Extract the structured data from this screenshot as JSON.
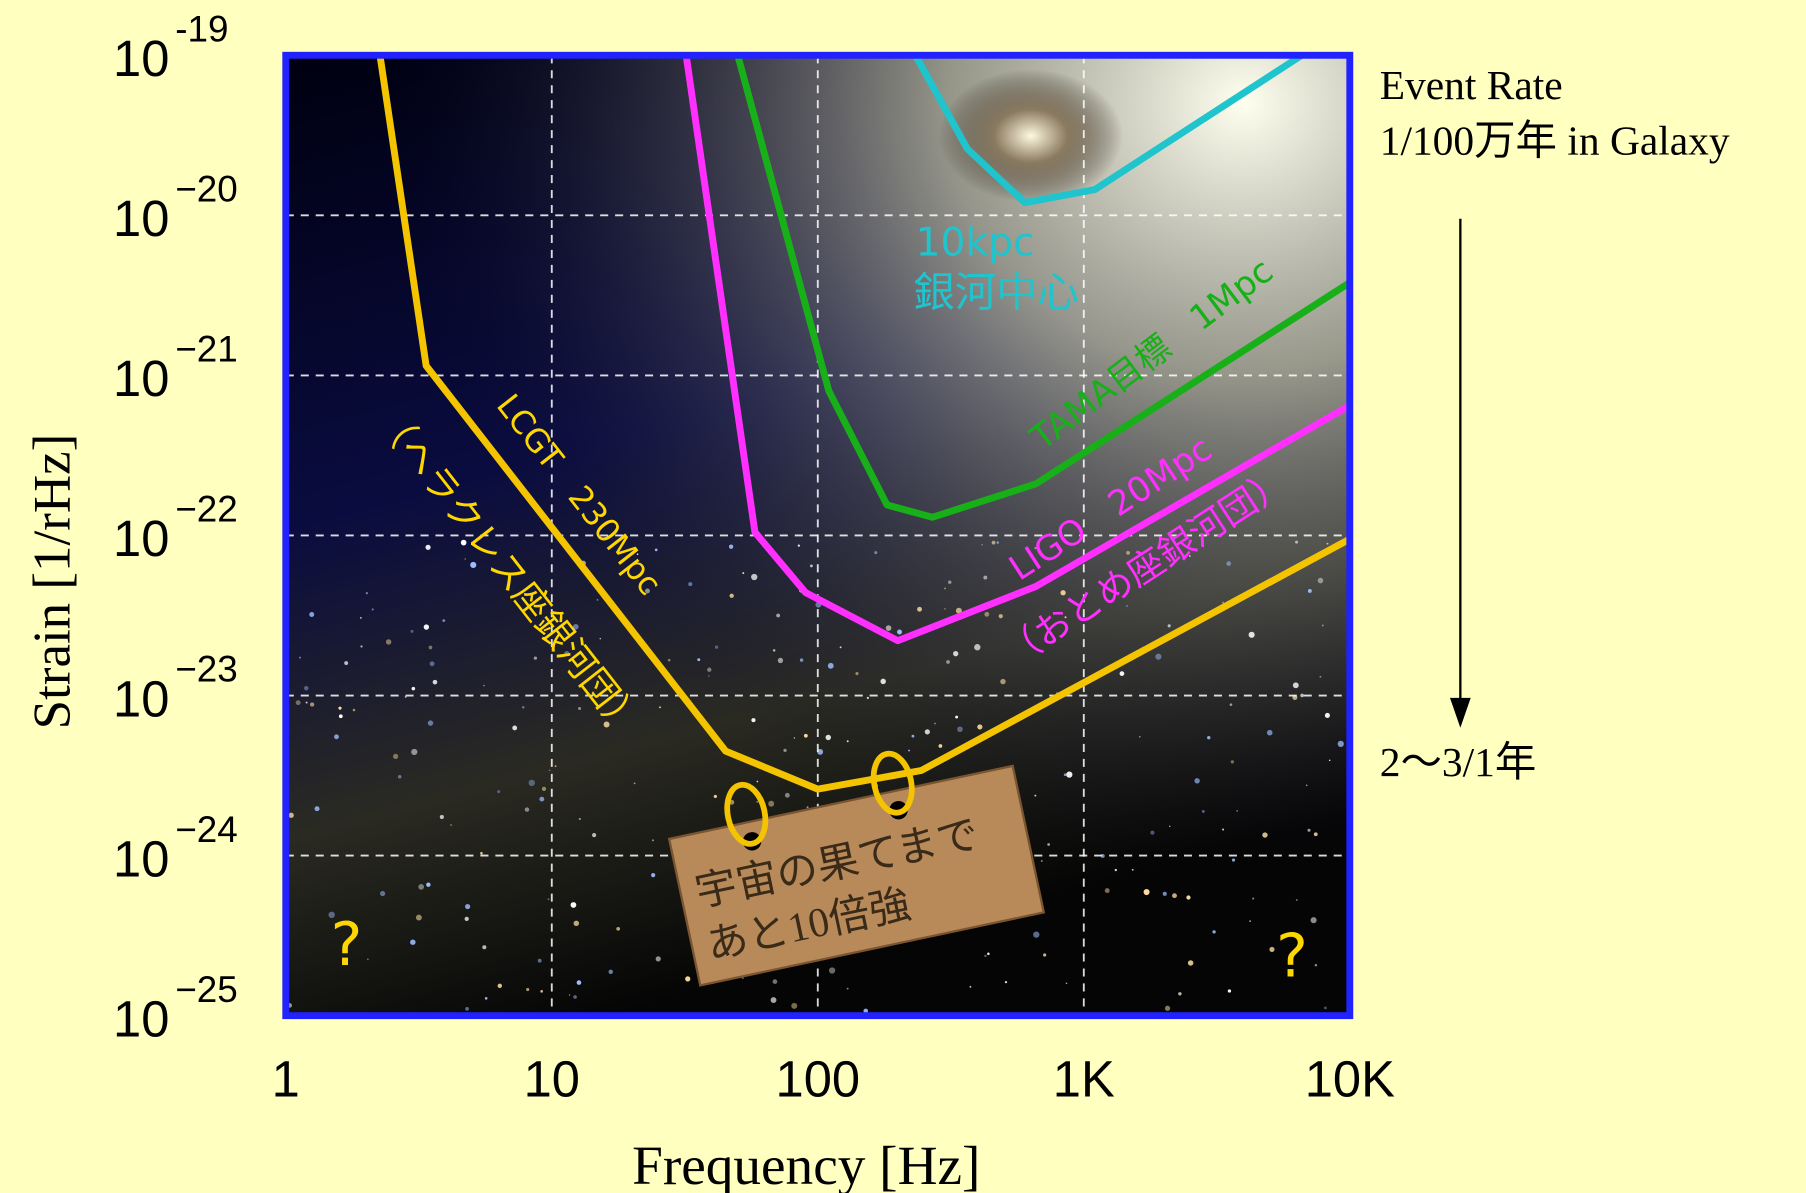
{
  "chart_data": {
    "type": "line",
    "x_label": "Frequency [Hz]",
    "y_label": "Strain [1/rHz]",
    "log_x": true,
    "log_y": true,
    "grid": true,
    "xlim": [
      1,
      10000
    ],
    "ylim": [
      1e-25,
      1e-19
    ],
    "xticks": [
      1,
      10,
      100,
      {
        "value": 1000,
        "label": "1K"
      },
      {
        "value": 10000,
        "label": "10K"
      }
    ],
    "yticks": [
      {
        "value": 1e-25,
        "label": "10",
        "exponent": "−25"
      },
      {
        "value": 1e-24,
        "label": "10",
        "exponent": "−24"
      },
      {
        "value": 1e-23,
        "label": "10",
        "exponent": "−23"
      },
      {
        "value": 1e-22,
        "label": "10",
        "exponent": "−22"
      },
      {
        "value": 1e-21,
        "label": "10",
        "exponent": "−21"
      },
      {
        "value": 1e-20,
        "label": "10",
        "exponent": "−20"
      },
      {
        "value": 1e-19,
        "label": "10",
        "exponent": "-19"
      }
    ],
    "series": [
      {
        "color": "#20c4cc",
        "x": [
          233,
          365,
          600,
          1100,
          6600
        ],
        "values": [
          1e-19,
          2.6e-20,
          1.2e-20,
          1.45e-20,
          1e-19
        ]
      },
      {
        "color": "#18b018",
        "x": [
          50,
          110,
          182,
          270,
          660,
          10000
        ],
        "values": [
          1e-19,
          8e-22,
          1.55e-22,
          1.3e-22,
          2.1e-22,
          3.8e-21
        ]
      },
      {
        "color": "#ff30ff",
        "x": [
          32,
          58,
          90,
          200,
          660,
          10000
        ],
        "values": [
          1e-19,
          1.05e-22,
          4.4e-23,
          2.2e-23,
          4.8e-23,
          6.5e-22
        ]
      },
      {
        "color": "#f5c400",
        "x": [
          2.26,
          3.37,
          45,
          100,
          245,
          10000
        ],
        "values": [
          1e-19,
          1.15e-21,
          4.5e-24,
          2.6e-24,
          3.4e-24,
          9.5e-23
        ]
      }
    ],
    "annotations": [
      "10kpc",
      "銀河中心",
      "TAMA目標　1Mpc",
      "LIGO　20Mpc",
      "（おとめ座銀河団）",
      "LCGT　230Mpc",
      "（ヘラクレス座銀河団）",
      "宇宙の果てまで",
      "あと10倍強",
      "?",
      "?",
      "Event Rate",
      "1/100万年 in Galaxy",
      "2～3/1年"
    ]
  }
}
